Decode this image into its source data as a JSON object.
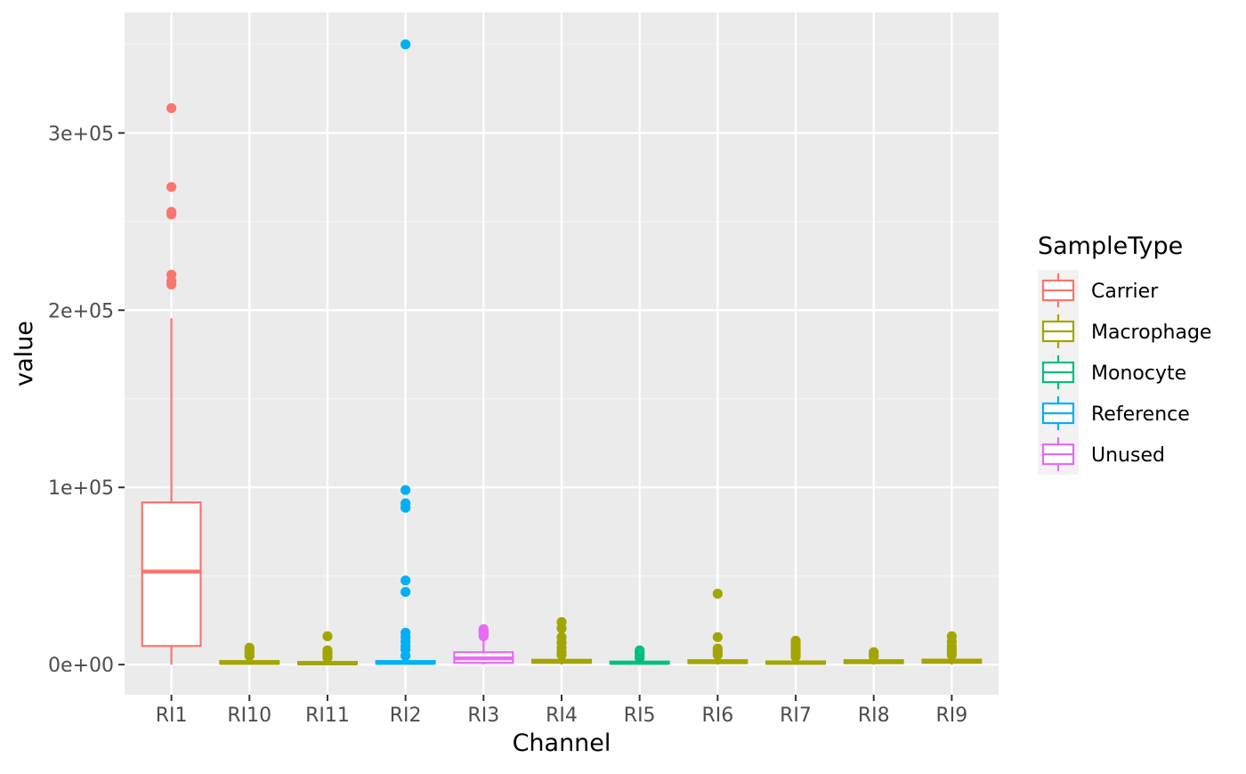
{
  "chart_data": {
    "type": "boxplot",
    "xlabel": "Channel",
    "ylabel": "value",
    "ylim": [
      -17000,
      368000
    ],
    "yticks": [
      0,
      100000,
      200000,
      300000
    ],
    "ytick_labels": [
      "0e+00",
      "1e+05",
      "2e+05",
      "3e+05"
    ],
    "grid": true,
    "legend": {
      "title": "SampleType",
      "position": "right",
      "items": [
        {
          "name": "Carrier",
          "color": "#F8766D"
        },
        {
          "name": "Macrophage",
          "color": "#A3A500"
        },
        {
          "name": "Monocyte",
          "color": "#00BF7D"
        },
        {
          "name": "Reference",
          "color": "#00B0F6"
        },
        {
          "name": "Unused",
          "color": "#E76BF3"
        }
      ]
    },
    "categories": [
      "RI1",
      "RI10",
      "RI11",
      "RI2",
      "RI3",
      "RI4",
      "RI5",
      "RI6",
      "RI7",
      "RI8",
      "RI9"
    ],
    "boxes": [
      {
        "category": "RI1",
        "group": "Carrier",
        "min": 0,
        "q1": 10500,
        "median": 52500,
        "q3": 91500,
        "max": 195500,
        "outliers": [
          314000,
          269500,
          255500,
          254000,
          220000,
          216500,
          214500
        ]
      },
      {
        "category": "RI10",
        "group": "Macrophage",
        "min": 0,
        "q1": 500,
        "median": 1000,
        "q3": 2000,
        "max": 4000,
        "outliers": [
          9500,
          8000,
          6500,
          5000
        ]
      },
      {
        "category": "RI11",
        "group": "Macrophage",
        "min": 0,
        "q1": 300,
        "median": 700,
        "q3": 1500,
        "max": 3000,
        "outliers": [
          16000,
          8000,
          6500,
          5000,
          4000
        ]
      },
      {
        "category": "RI2",
        "group": "Reference",
        "min": 0,
        "q1": 500,
        "median": 1000,
        "q3": 2000,
        "max": 3500,
        "outliers": [
          350000,
          98500,
          91000,
          88500,
          47500,
          41000,
          18000,
          15500,
          13000,
          10500,
          8500,
          5000
        ]
      },
      {
        "category": "RI3",
        "group": "Unused",
        "min": 0,
        "q1": 1000,
        "median": 3500,
        "q3": 7000,
        "max": 14000,
        "outliers": [
          20000,
          19000,
          18000,
          17000,
          16000
        ]
      },
      {
        "category": "RI4",
        "group": "Macrophage",
        "min": 0,
        "q1": 1000,
        "median": 1700,
        "q3": 2700,
        "max": 4500,
        "outliers": [
          24000,
          20500,
          15500,
          12500,
          9500,
          7000,
          5500
        ]
      },
      {
        "category": "RI5",
        "group": "Monocyte",
        "min": 0,
        "q1": 500,
        "median": 1000,
        "q3": 1700,
        "max": 3000,
        "outliers": [
          8000,
          6500,
          5000,
          4000
        ]
      },
      {
        "category": "RI6",
        "group": "Macrophage",
        "min": 0,
        "q1": 800,
        "median": 1500,
        "q3": 2500,
        "max": 4500,
        "outliers": [
          40000,
          15500,
          9000,
          7000,
          5500
        ]
      },
      {
        "category": "RI7",
        "group": "Macrophage",
        "min": 0,
        "q1": 500,
        "median": 1000,
        "q3": 1800,
        "max": 3500,
        "outliers": [
          13500,
          12000,
          10000,
          8500,
          7000,
          5500,
          4500
        ]
      },
      {
        "category": "RI8",
        "group": "Macrophage",
        "min": 0,
        "q1": 800,
        "median": 1500,
        "q3": 2500,
        "max": 4000,
        "outliers": [
          7000,
          5500,
          4500
        ]
      },
      {
        "category": "RI9",
        "group": "Macrophage",
        "min": 0,
        "q1": 1000,
        "median": 1800,
        "q3": 2800,
        "max": 4500,
        "outliers": [
          16000,
          13000,
          10500,
          8500,
          7000,
          5500
        ]
      }
    ]
  },
  "colors": {
    "panel_background": "#EBEBEB",
    "grid_major": "#FFFFFF",
    "grid_minor": "#F5F5F5",
    "tick_text": "#4D4D4D",
    "axis_title": "#000000"
  }
}
